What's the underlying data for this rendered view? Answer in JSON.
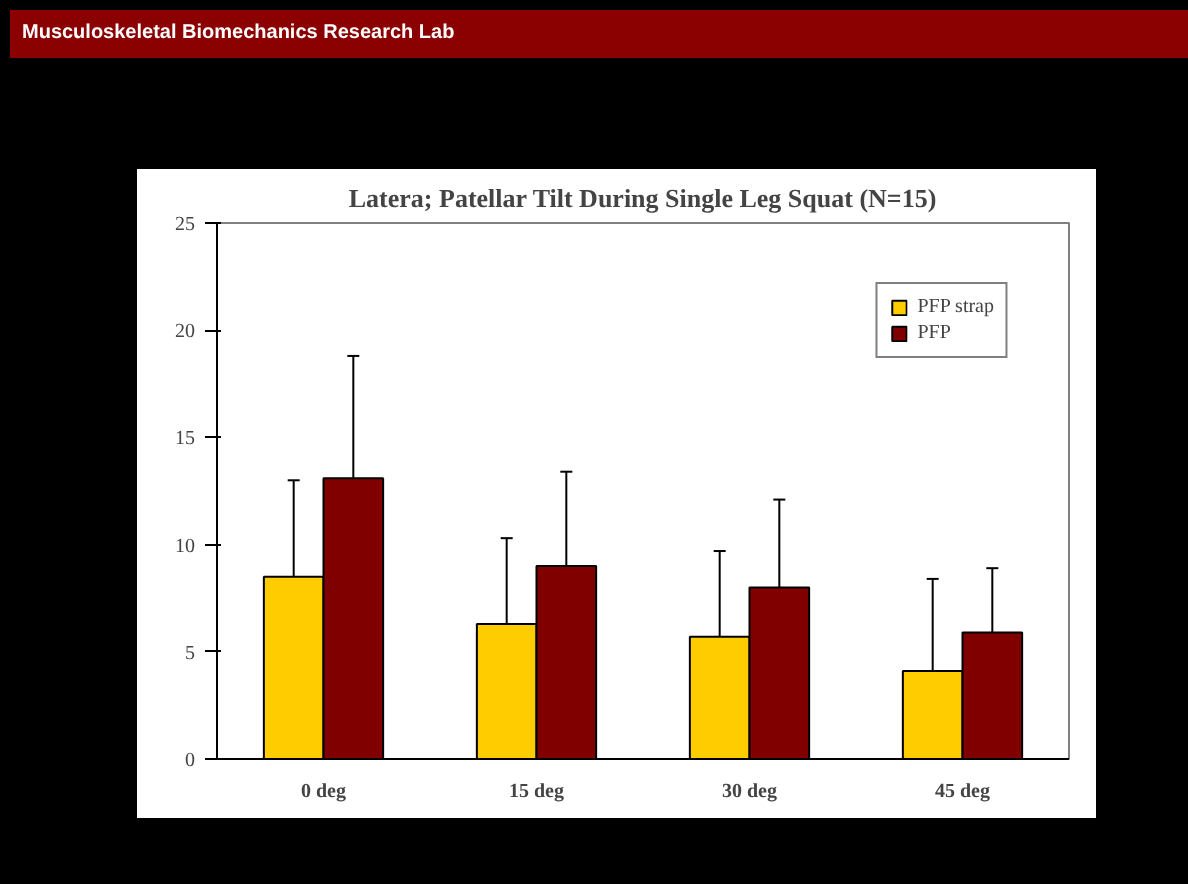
{
  "chart_data": {
    "type": "bar",
    "title": "Latera; Patellar Tilt During Single Leg Squat (N=15)",
    "annotations": [
      "Musculoskeletal Biomechanics Research Lab"
    ],
    "categories": [
      "0 deg",
      "15 deg",
      "30 deg",
      "45 deg"
    ],
    "series": [
      {
        "name": "PFP strap",
        "color": "#ffcc00",
        "values": [
          8.5,
          6.3,
          5.7,
          4.1
        ],
        "errors": [
          [
            8.5,
            13.0
          ],
          [
            6.3,
            10.3
          ],
          [
            5.7,
            9.7
          ],
          [
            4.1,
            8.4
          ]
        ]
      },
      {
        "name": "PFP",
        "color": "#800000",
        "values": [
          13.1,
          9.0,
          8.0,
          5.9
        ],
        "errors": [
          [
            13.1,
            18.8
          ],
          [
            9.0,
            13.4
          ],
          [
            8.0,
            12.1
          ],
          [
            5.9,
            8.9
          ]
        ]
      }
    ],
    "ylim": [
      0,
      25
    ],
    "yticks": [
      0,
      5,
      10,
      15,
      20,
      25
    ],
    "grid": false,
    "legend": "top right"
  }
}
